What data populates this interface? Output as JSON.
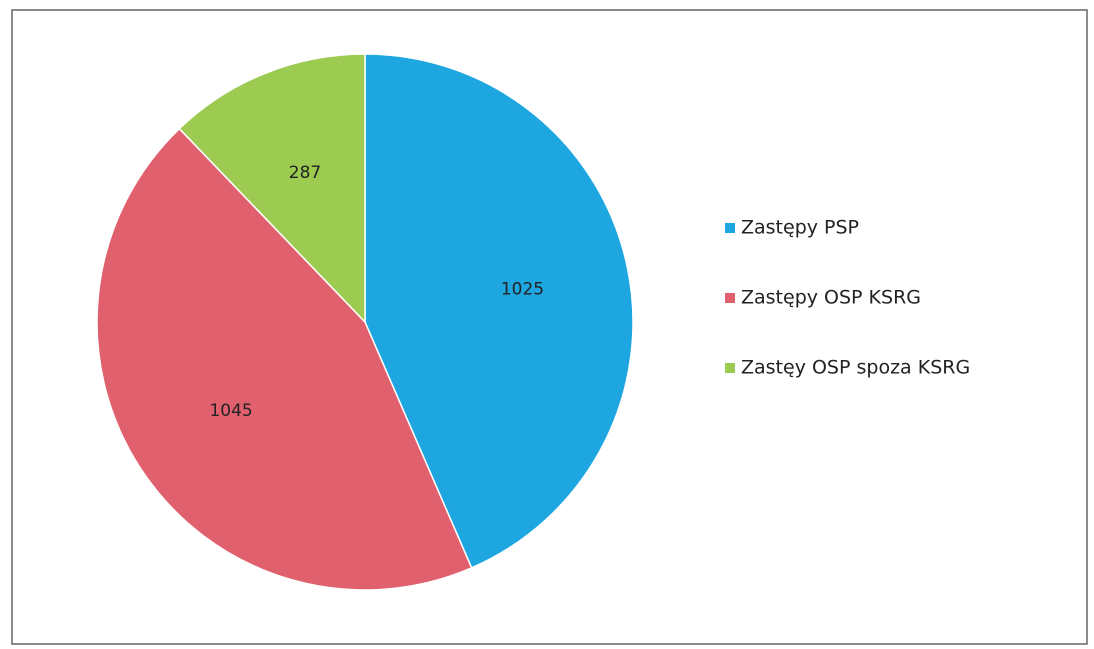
{
  "chart_data": {
    "type": "pie",
    "categories": [
      "Zastępy PSP",
      "Zastępy OSP KSRG",
      "Zastęy OSP spoza KSRG"
    ],
    "values": [
      1025,
      1045,
      287
    ],
    "colors": [
      "#1ea6e0",
      "#e0606e",
      "#9dcb52"
    ],
    "legend": "right"
  }
}
